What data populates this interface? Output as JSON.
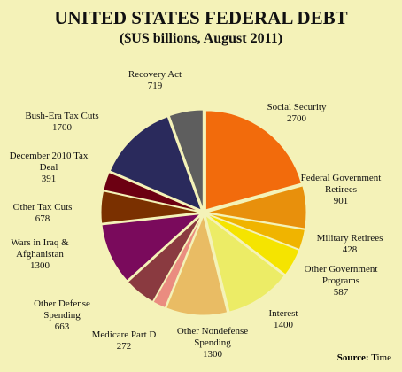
{
  "chart_data": {
    "type": "pie",
    "title": "UNITED STATES FEDERAL DEBT",
    "subtitle": "($US billions, August 2011)",
    "source_label": "Source:",
    "source": "Time",
    "categories": [
      "Social Security",
      "Federal Government Retirees",
      "Military Retirees",
      "Other Government Programs",
      "Interest",
      "Other Nondefense Spending",
      "Medicare Part D",
      "Other Defense Spending",
      "Wars in Iraq & Afghanistan",
      "Other Tax Cuts",
      "December 2010 Tax Deal",
      "Bush-Era Tax Cuts",
      "Recovery Act"
    ],
    "values": [
      2700,
      901,
      428,
      587,
      1400,
      1300,
      272,
      663,
      1300,
      678,
      391,
      1700,
      719
    ],
    "colors": [
      "#f26b0c",
      "#e8900c",
      "#f0b400",
      "#f5e400",
      "#ecec66",
      "#e9bc64",
      "#ea8c80",
      "#8a3a40",
      "#7a0a5c",
      "#7a3000",
      "#6c0012",
      "#2a2a5c",
      "#5e5e5e"
    ]
  }
}
